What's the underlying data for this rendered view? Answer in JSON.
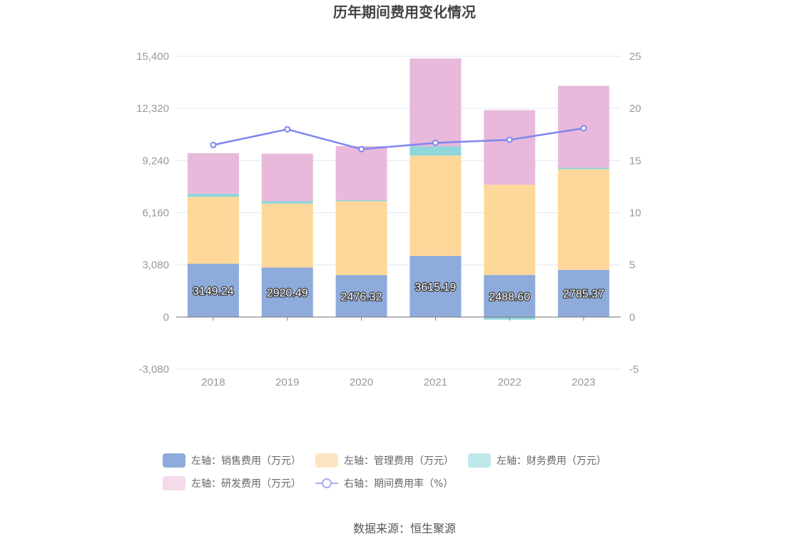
{
  "chart_data": {
    "type": "bar",
    "title": "历年期间费用变化情况",
    "categories": [
      "2018",
      "2019",
      "2020",
      "2021",
      "2022",
      "2023"
    ],
    "stacked": true,
    "series": [
      {
        "name": "左轴：销售费用（万元）",
        "axis": "left",
        "color": "#8eabdb",
        "values": [
          3149.24,
          2920.49,
          2476.32,
          3615.19,
          2488.6,
          2785.37
        ]
      },
      {
        "name": "左轴：管理费用（万元）",
        "axis": "left",
        "color": "#fed89a",
        "values": [
          3950,
          3780,
          4360,
          5920,
          5330,
          5950
        ]
      },
      {
        "name": "左轴：财务费用（万元）",
        "axis": "left",
        "color": "#8ed6da",
        "values": [
          180,
          150,
          60,
          540,
          -150,
          90
        ]
      },
      {
        "name": "左轴：研发费用（万元）",
        "axis": "left",
        "color": "#e8b9db",
        "values": [
          2400,
          2800,
          3200,
          5200,
          4400,
          4830
        ]
      }
    ],
    "line_series": [
      {
        "name": "右轴：期间费用率（%）",
        "axis": "right",
        "color": "#7f86ee",
        "values": [
          16.5,
          18.0,
          16.1,
          16.7,
          17.0,
          18.1
        ]
      }
    ],
    "left_axis": {
      "range": [
        -3080,
        15400
      ],
      "ticks": [
        "-3,080",
        "0",
        "3,080",
        "6,160",
        "9,240",
        "12,320",
        "15,400"
      ]
    },
    "right_axis": {
      "range": [
        -5,
        25
      ],
      "ticks": [
        "-5",
        "0",
        "5",
        "10",
        "15",
        "20",
        "25"
      ]
    },
    "data_labels": [
      "3149.24",
      "2920.49",
      "2476.32",
      "3615.19",
      "2488.60",
      "2785.37"
    ],
    "grid": true,
    "legend_position": "bottom"
  },
  "legend": {
    "items": [
      {
        "label": "左轴：销售费用（万元）",
        "color": "#8eabdb"
      },
      {
        "label": "左轴：管理费用（万元）",
        "color": "#fde5c2"
      },
      {
        "label": "左轴：财务费用（万元）",
        "color": "#bfe8ea"
      },
      {
        "label": "左轴：研发费用（万元）",
        "color": "#f3dbec"
      },
      {
        "label": "右轴：期间费用率（%）",
        "color": "#aab0f0"
      }
    ]
  },
  "source": "数据来源：恒生聚源"
}
